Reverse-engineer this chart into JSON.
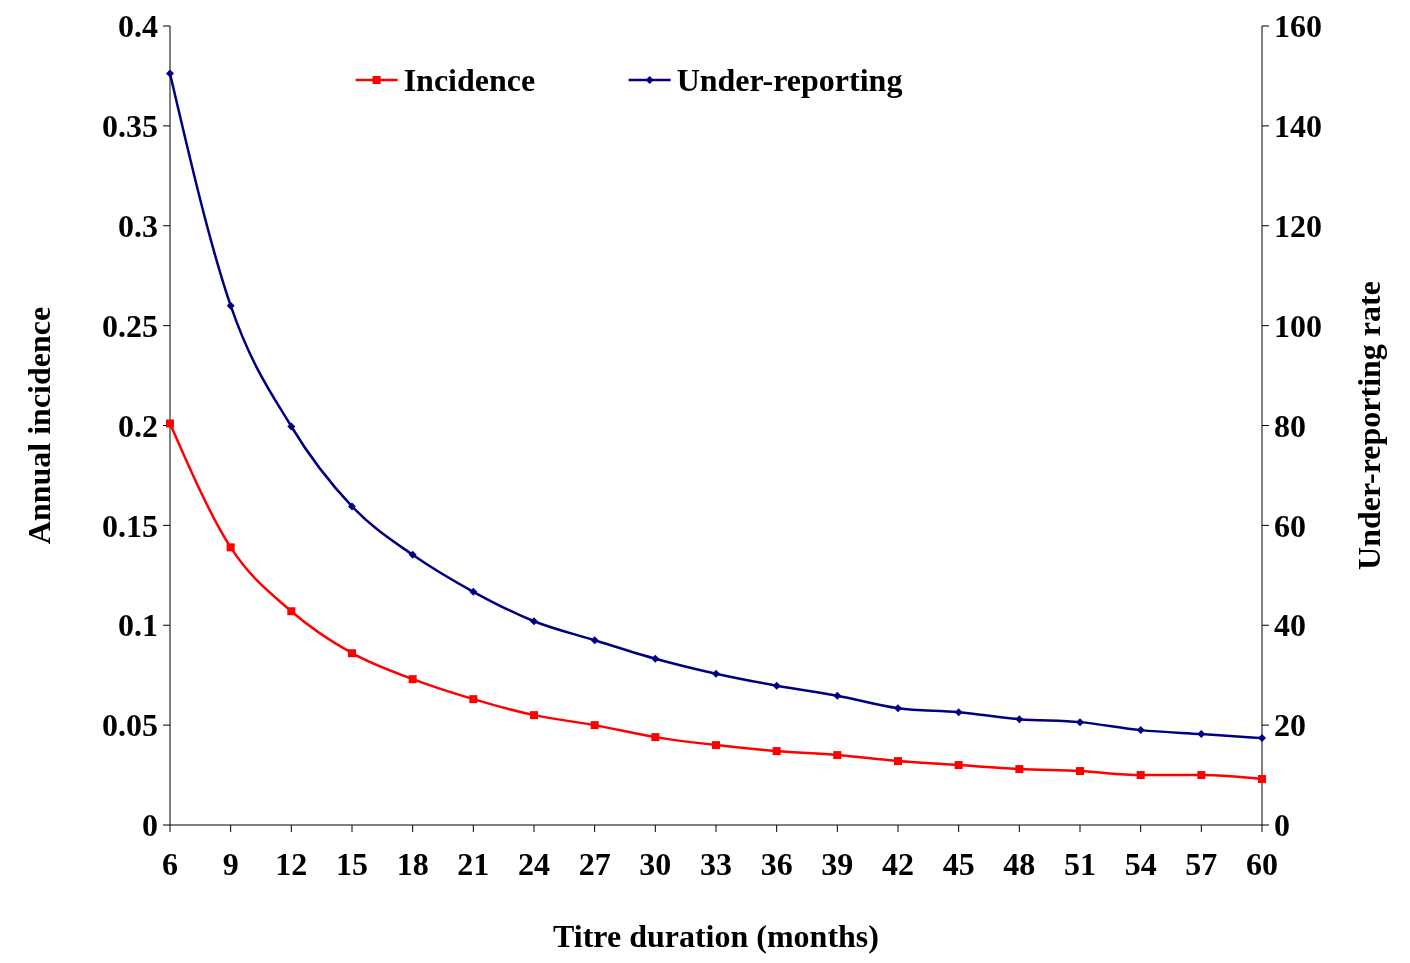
{
  "chart_data": {
    "type": "line",
    "xlabel": "Titre duration (months)",
    "ylabel": "Annual incidence",
    "y2label": "Under-reporting rate",
    "x": [
      6,
      9,
      12,
      15,
      18,
      21,
      24,
      27,
      30,
      33,
      36,
      39,
      42,
      45,
      48,
      51,
      54,
      57,
      60
    ],
    "xlim": [
      6,
      60
    ],
    "xticks": [
      6,
      9,
      12,
      15,
      18,
      21,
      24,
      27,
      30,
      33,
      36,
      39,
      42,
      45,
      48,
      51,
      54,
      57,
      60
    ],
    "ylim": [
      0,
      0.4
    ],
    "yticks": [
      0,
      0.05,
      0.1,
      0.15,
      0.2,
      0.25,
      0.3,
      0.35,
      0.4
    ],
    "y2lim": [
      0,
      160
    ],
    "y2ticks": [
      0,
      20,
      40,
      60,
      80,
      100,
      120,
      140,
      160
    ],
    "legend": "top",
    "grid": false,
    "line_style": "solid",
    "series": [
      {
        "name": "Incidence",
        "color": "#ff0000",
        "marker": "square",
        "values": [
          0.201,
          0.139,
          0.107,
          0.086,
          0.073,
          0.063,
          0.055,
          0.05,
          0.044,
          0.04,
          0.037,
          0.035,
          0.032,
          0.03,
          0.028,
          0.027,
          0.025,
          0.025,
          0.023
        ]
      },
      {
        "name": "Under-reporting",
        "color": "#000080",
        "marker": "diamond",
        "axis": "y2",
        "values": [
          150.5,
          104,
          79.8,
          63.8,
          54.1,
          46.7,
          40.8,
          37,
          33.3,
          30.3,
          27.9,
          25.9,
          23.4,
          22.6,
          21.2,
          20.6,
          19,
          18.2,
          17.4
        ]
      }
    ]
  }
}
